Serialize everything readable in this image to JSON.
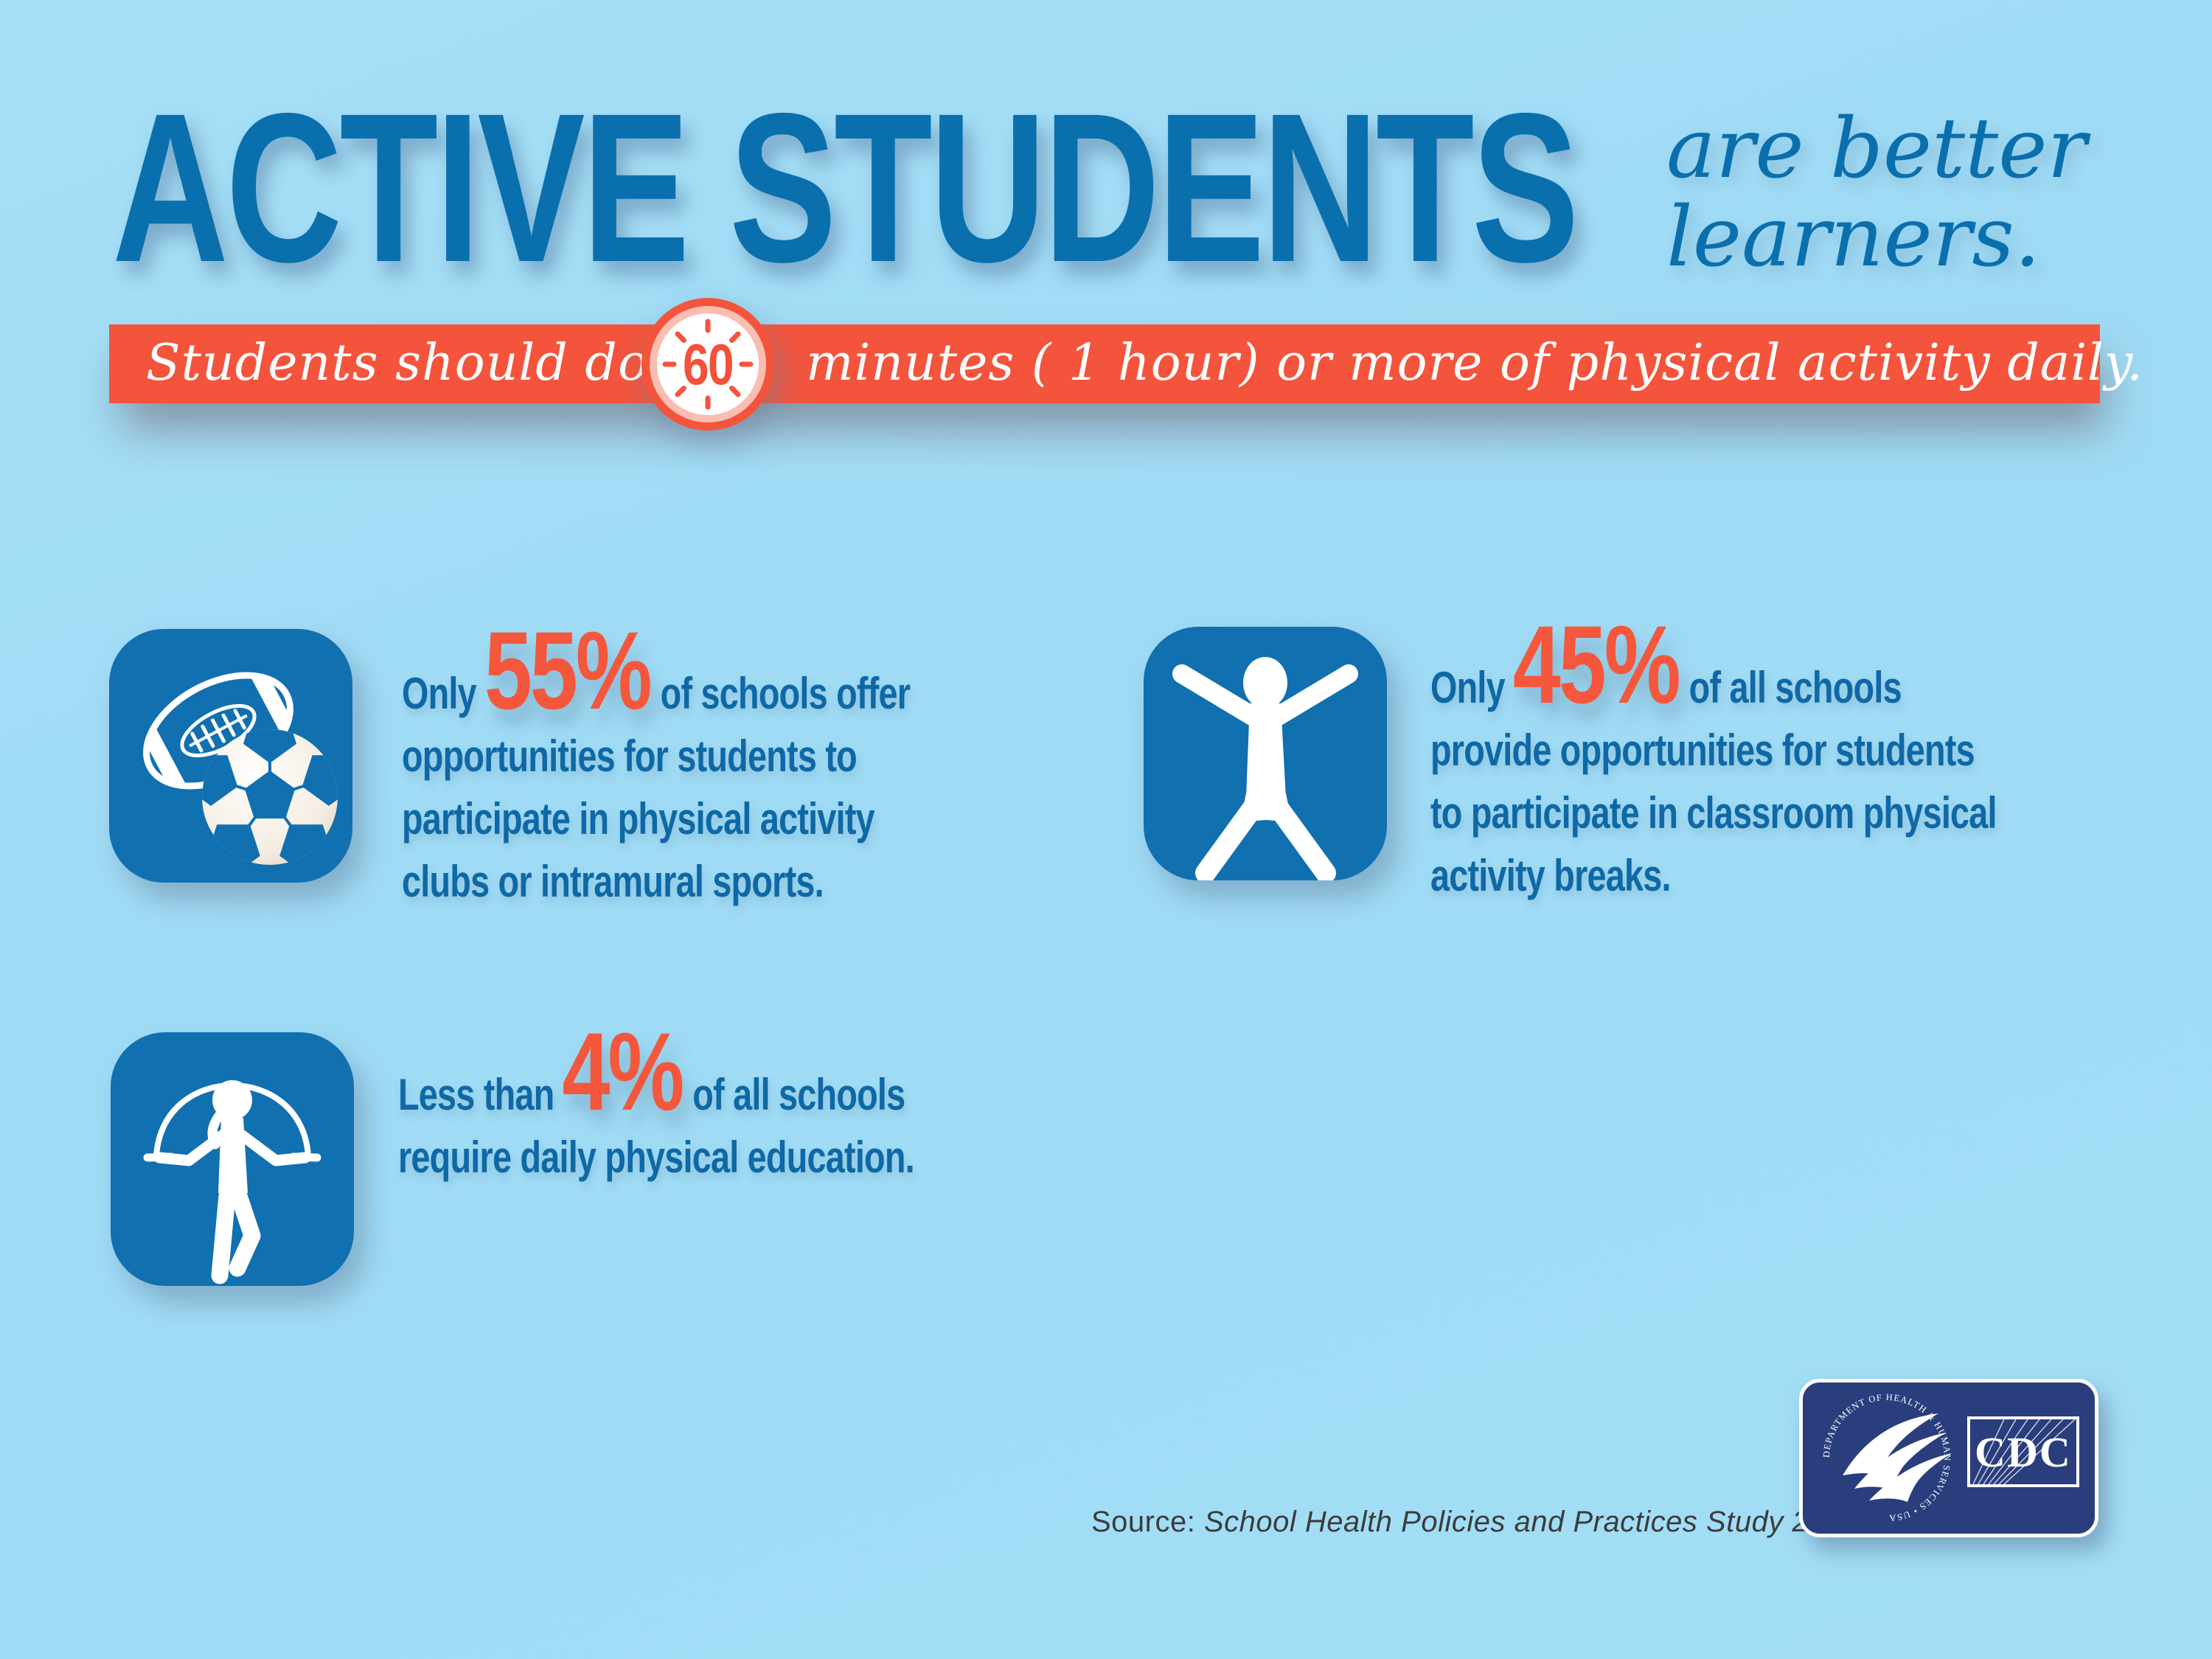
{
  "title": {
    "main": "ACTIVE STUDENTS",
    "tagline_line1": "are better",
    "tagline_line2": "learners."
  },
  "banner": {
    "lead": "Students should do",
    "clock_minutes": "60",
    "tail": "minutes ( 1 hour) or more of physical activity daily."
  },
  "stats": [
    {
      "icon": "football-and-soccer-ball",
      "prefix": "Only",
      "value": "55%",
      "lines": [
        "of schools offer",
        "opportunities for students to",
        "participate in physical activity",
        "clubs or intramural sports."
      ]
    },
    {
      "icon": "jumping-jack-person",
      "prefix": "Only",
      "value": "45%",
      "lines": [
        "of all schools",
        "provide opportunities for students",
        "to participate in classroom physical",
        "activity breaks."
      ]
    },
    {
      "icon": "jump-rope-person",
      "prefix": "Less than",
      "value": "4%",
      "lines": [
        "of all schools",
        "require daily physical education."
      ]
    }
  ],
  "source": {
    "label": "Source:",
    "text": "School Health Policies and Practices Study 2014"
  },
  "cdc": {
    "ring_text": "DEPARTMENT OF HEALTH & HUMAN SERVICES • USA",
    "acronym": "CDC"
  },
  "colors": {
    "background": "#a0dcf5",
    "title_blue": "#0a6fad",
    "body_blue": "#0f68a6",
    "accent_orange": "#f4543c",
    "number_orange": "#f4573c",
    "tile_blue": "#1170b0",
    "cdc_navy": "#2a3e7d",
    "source_gray": "#3c3c3c"
  }
}
